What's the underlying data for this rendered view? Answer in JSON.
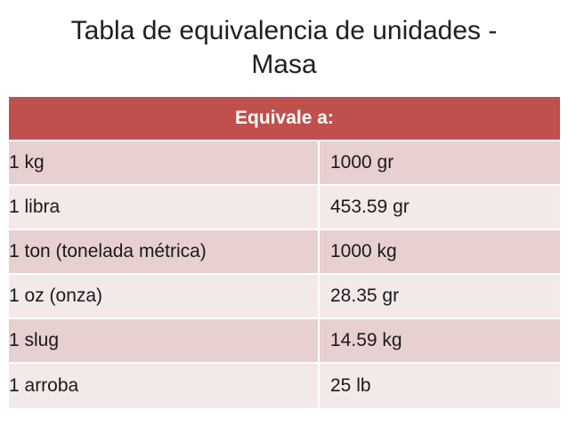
{
  "title": {
    "line1": "Tabla de equivalencia de unidades -",
    "line2": "Masa"
  },
  "table": {
    "header": "Equivale a:",
    "rows": [
      {
        "unit": "1 kg",
        "equivalent": "1000 gr"
      },
      {
        "unit": "1 libra",
        "equivalent": "453.59 gr"
      },
      {
        "unit": "1 ton (tonelada métrica)",
        "equivalent": "1000 kg"
      },
      {
        "unit": "1 oz (onza)",
        "equivalent": "28.35 gr"
      },
      {
        "unit": "1 slug",
        "equivalent": "14.59 kg"
      },
      {
        "unit": "1 arroba",
        "equivalent": "25 lb"
      }
    ]
  },
  "colors": {
    "header_bg": "#c0504d",
    "row_odd_bg": "#e8d0d0",
    "row_even_bg": "#f4e9e9"
  }
}
